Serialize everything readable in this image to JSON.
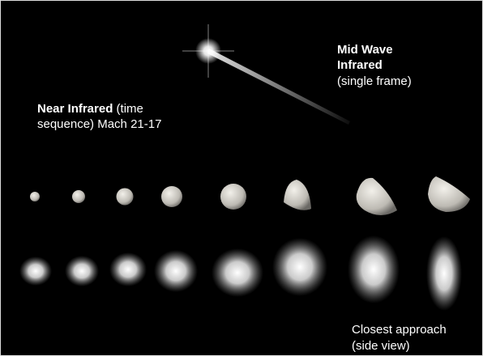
{
  "labels": {
    "mid_wave": {
      "title_lines": [
        "Mid Wave",
        "Infrared"
      ],
      "note": "(single frame)"
    },
    "near_infrared": {
      "title": "Near Infrared",
      "lines": [
        "(time",
        "sequence) Mach 21-17"
      ]
    },
    "closest_approach": {
      "lines": [
        "Closest approach",
        "(side view)"
      ]
    }
  }
}
